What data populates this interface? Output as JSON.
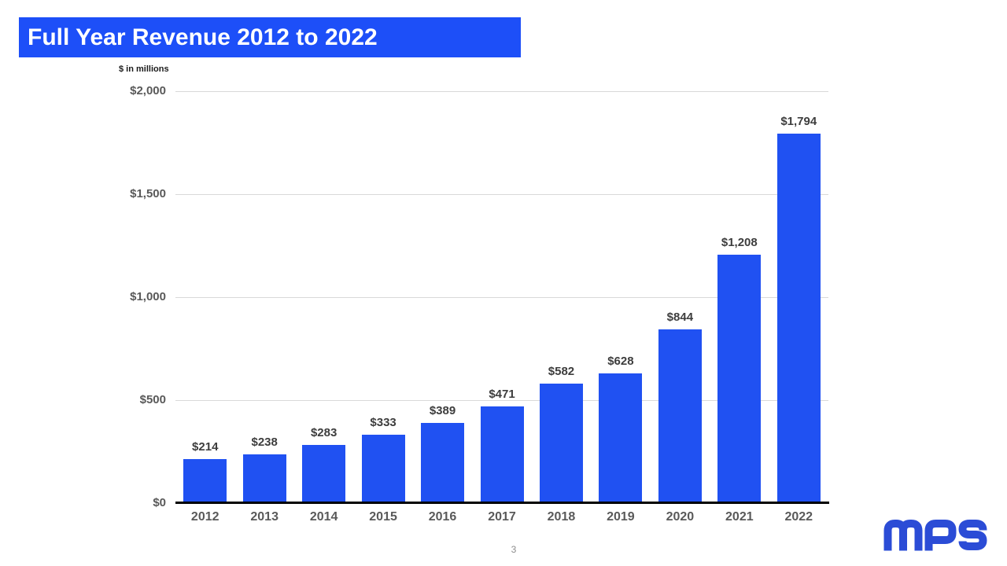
{
  "slide": {
    "title": "Full Year Revenue 2012 to 2022",
    "units_label": "$ in millions",
    "page_number": "3",
    "logo_text": "MPS"
  },
  "colors": {
    "banner_blue": "#1d4ff8",
    "bar_blue": "#2051f2",
    "logo_blue": "#2b4cd6",
    "gridline": "#d9d9d9",
    "axis_black": "#000000",
    "tick_label": "#595959",
    "value_label": "#3d3d3d",
    "units_black": "#1a1a1a",
    "page_gray": "#8c8c8c"
  },
  "chart_data": {
    "type": "bar",
    "title": "Full Year Revenue 2012 to 2022",
    "subtitle": "$ in millions",
    "categories": [
      "2012",
      "2013",
      "2014",
      "2015",
      "2016",
      "2017",
      "2018",
      "2019",
      "2020",
      "2021",
      "2022"
    ],
    "values": [
      214,
      238,
      283,
      333,
      389,
      471,
      582,
      628,
      844,
      1208,
      1794
    ],
    "value_labels": [
      "$214",
      "$238",
      "$283",
      "$333",
      "$389",
      "$471",
      "$582",
      "$628",
      "$844",
      "$1,208",
      "$1,794"
    ],
    "xlabel": "",
    "ylabel": "",
    "ylim": [
      0,
      2000
    ],
    "yticks": [
      0,
      500,
      1000,
      1500,
      2000
    ],
    "ytick_labels": [
      "$0",
      "$500",
      "$1,000",
      "$1,500",
      "$2,000"
    ],
    "grid": true,
    "legend": false,
    "bar_color": "#2051f2"
  }
}
